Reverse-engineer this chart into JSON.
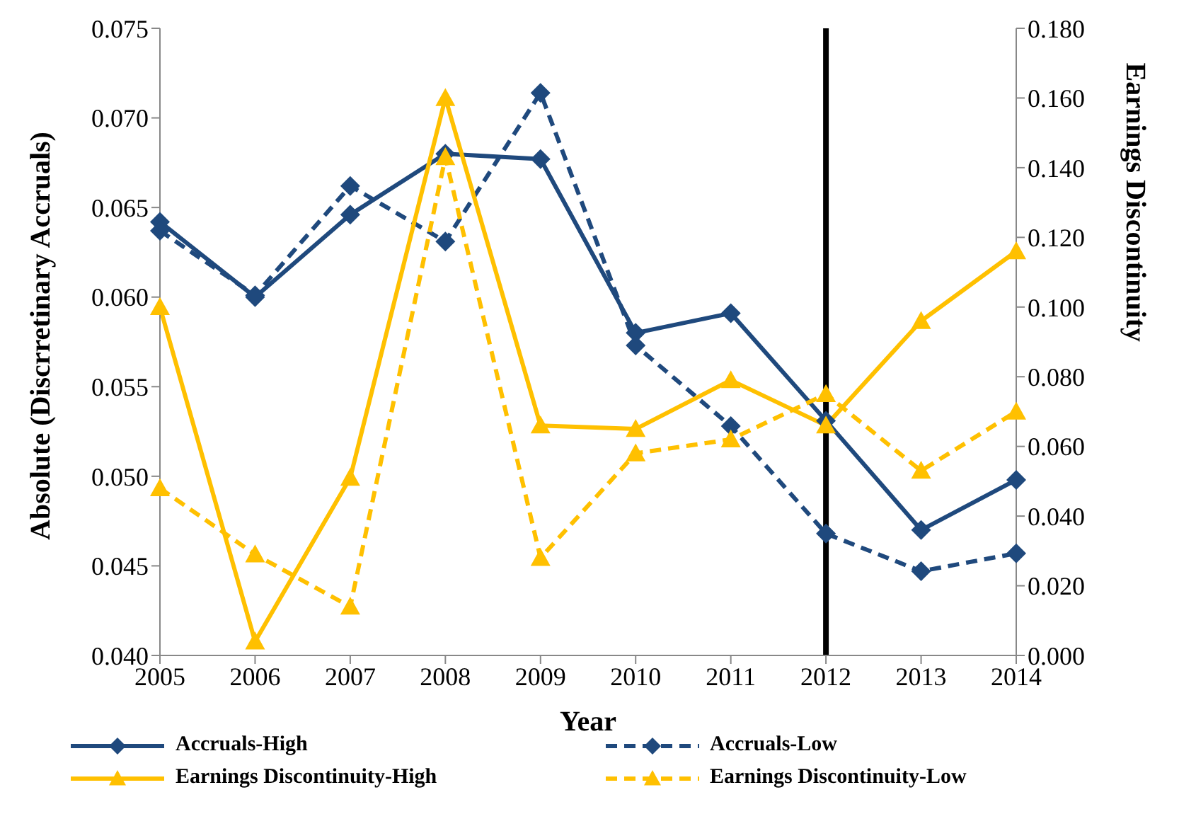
{
  "chart_data": {
    "type": "line",
    "xlabel": "Year",
    "ylabel": "Absolute (Discrretinary Accruals)",
    "y2label": "Earnings Discontinuity",
    "categories": [
      "2005",
      "2006",
      "2007",
      "2008",
      "2009",
      "2010",
      "2011",
      "2012",
      "2013",
      "2014"
    ],
    "series": [
      {
        "name": "Accruals-High",
        "color": "#1f497d",
        "marker": "diamond",
        "line_style": "solid",
        "values": [
          0.0642,
          0.06,
          0.0646,
          0.068,
          0.0677,
          0.058,
          0.0591,
          0.0531,
          0.047,
          0.0498
        ]
      },
      {
        "name": "Accruals-Low",
        "color": "#1f497d",
        "marker": "diamond",
        "line_style": "dashed",
        "values": [
          0.0637,
          0.0601,
          0.0662,
          0.0631,
          0.0714,
          0.0573,
          0.0528,
          0.0468,
          0.0447,
          0.0457
        ]
      },
      {
        "name": "Earnings Discontinuity-High",
        "color": "#ffc000",
        "marker": "triangle",
        "line_style": "solid",
        "axis": "y2",
        "values": [
          0.1,
          0.004,
          0.051,
          0.16,
          0.066,
          0.065,
          0.079,
          0.066,
          0.096,
          0.116
        ]
      },
      {
        "name": "Earnings Discontinuity-Low",
        "color": "#ffc000",
        "marker": "triangle",
        "line_style": "dashed",
        "axis": "y2",
        "values": [
          0.048,
          0.029,
          0.014,
          0.143,
          0.028,
          0.058,
          0.062,
          0.075,
          0.053,
          0.07
        ]
      }
    ],
    "ylim": [
      0.04,
      0.075
    ],
    "yticks": [
      {
        "value": 0.04,
        "label": "0.040"
      },
      {
        "value": 0.045,
        "label": "0.045"
      },
      {
        "value": 0.05,
        "label": "0.050"
      },
      {
        "value": 0.055,
        "label": "0.055"
      },
      {
        "value": 0.06,
        "label": "0.060"
      },
      {
        "value": 0.065,
        "label": "0.065"
      },
      {
        "value": 0.07,
        "label": "0.070"
      },
      {
        "value": 0.075,
        "label": "0.075"
      }
    ],
    "y2lim": [
      0,
      0.18
    ],
    "y2ticks": [
      {
        "value": 0,
        "label": "0.000"
      },
      {
        "value": 0.02,
        "label": "0.020"
      },
      {
        "value": 0.04,
        "label": "0.040"
      },
      {
        "value": 0.06,
        "label": "0.060"
      },
      {
        "value": 0.08,
        "label": "0.080"
      },
      {
        "value": 0.1,
        "label": "0.100"
      },
      {
        "value": 0.12,
        "label": "0.120"
      },
      {
        "value": 0.14,
        "label": "0.140"
      },
      {
        "value": 0.16,
        "label": "0.160"
      },
      {
        "value": 0.18,
        "label": "0.180"
      }
    ],
    "ref_lines": [
      {
        "axis": "x",
        "value": "2012",
        "color": "#000000"
      }
    ],
    "grid": false,
    "legend": "bottom"
  }
}
